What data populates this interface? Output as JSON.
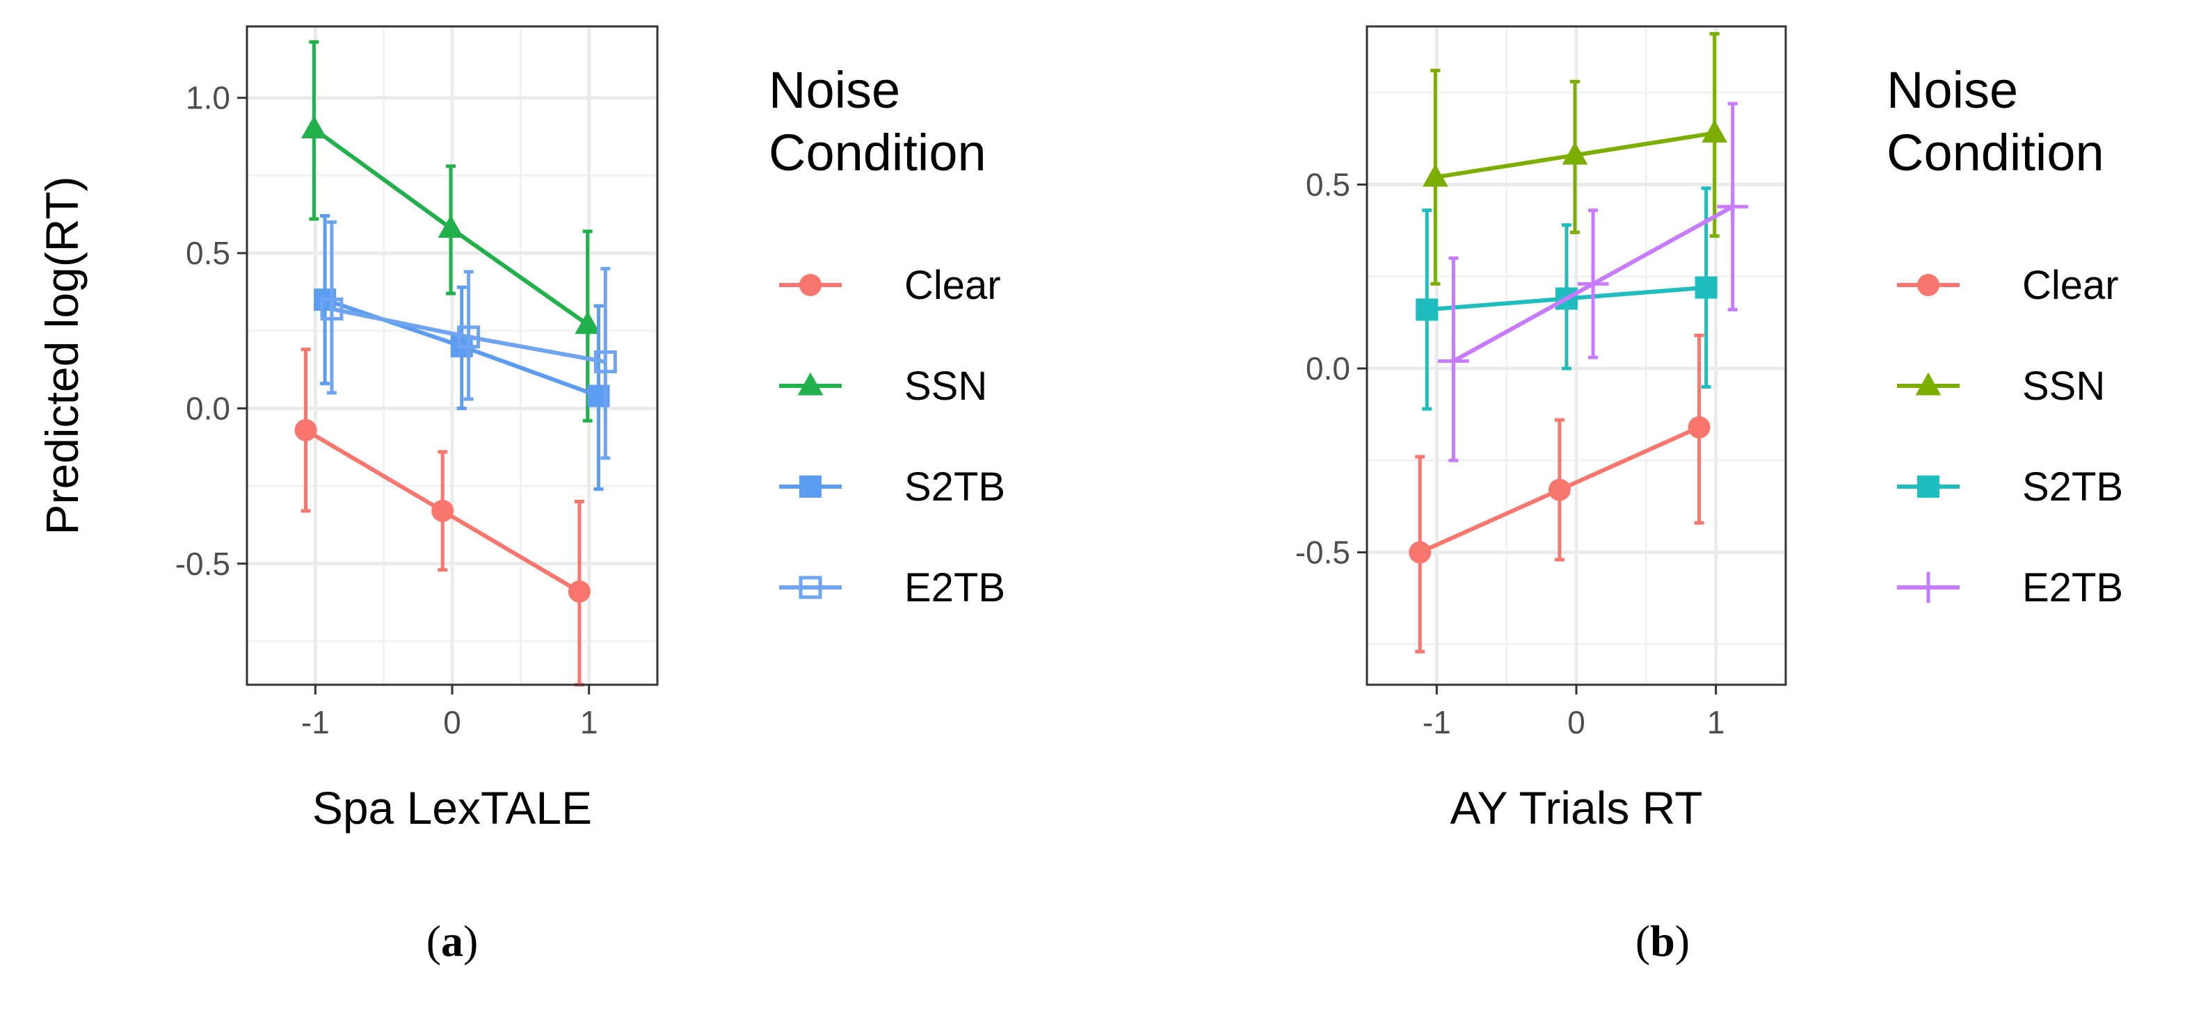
{
  "chart_data": [
    {
      "type": "line",
      "panel_label": "a",
      "xlabel": "Spa LexTALE",
      "ylabel": "Predicted log(RT)",
      "x_ticks": [
        -1,
        0,
        1
      ],
      "y_ticks": [
        -0.5,
        0.0,
        0.5,
        1.0
      ],
      "y_tick_labels": [
        "-0.5",
        "0.0",
        "0.5",
        "1.0"
      ],
      "xlim": [
        -1.5,
        1.5
      ],
      "ylim": [
        -0.89,
        1.23
      ],
      "grid": true,
      "legend_title_lines": [
        "Noise",
        "Condition"
      ],
      "series": [
        {
          "name": "Clear",
          "color": "#F8766D",
          "marker": "circle",
          "x": [
            -1,
            0,
            1
          ],
          "values": [
            -0.07,
            -0.33,
            -0.59
          ],
          "lower": [
            -0.33,
            -0.52,
            -0.89
          ],
          "upper": [
            0.19,
            -0.14,
            -0.3
          ]
        },
        {
          "name": "SSN",
          "color": "#21B04B",
          "marker": "triangle",
          "x": [
            -1,
            0,
            1
          ],
          "values": [
            0.9,
            0.58,
            0.27
          ],
          "lower": [
            0.61,
            0.37,
            -0.04
          ],
          "upper": [
            1.18,
            0.78,
            0.57
          ]
        },
        {
          "name": "S2TB",
          "color": "#5C9DF2",
          "marker": "square",
          "x": [
            -1,
            0,
            1
          ],
          "values": [
            0.35,
            0.2,
            0.04
          ],
          "lower": [
            0.08,
            0.0,
            -0.26
          ],
          "upper": [
            0.62,
            0.39,
            0.33
          ]
        },
        {
          "name": "E2TB",
          "color": "#6FA5F0",
          "marker": "open-square",
          "x": [
            -1,
            0,
            1
          ],
          "values": [
            0.32,
            0.23,
            0.15
          ],
          "lower": [
            0.05,
            0.03,
            -0.16
          ],
          "upper": [
            0.6,
            0.44,
            0.45
          ]
        }
      ]
    },
    {
      "type": "line",
      "panel_label": "b",
      "xlabel": "AY Trials RT",
      "ylabel": "",
      "x_ticks": [
        -1,
        0,
        1
      ],
      "y_ticks": [
        -0.5,
        0.0,
        0.5
      ],
      "y_tick_labels": [
        "-0.5",
        "0.0",
        "0.5"
      ],
      "xlim": [
        -1.5,
        1.5
      ],
      "ylim": [
        -0.86,
        0.93
      ],
      "grid": true,
      "legend_title_lines": [
        "Noise",
        "Condition"
      ],
      "series": [
        {
          "name": "Clear",
          "color": "#F8766D",
          "marker": "circle",
          "x": [
            -1,
            0,
            1
          ],
          "values": [
            -0.5,
            -0.33,
            -0.16
          ],
          "lower": [
            -0.77,
            -0.52,
            -0.42
          ],
          "upper": [
            -0.24,
            -0.14,
            0.09
          ]
        },
        {
          "name": "SSN",
          "color": "#7CAE00",
          "marker": "triangle",
          "x": [
            -1,
            0,
            1
          ],
          "values": [
            0.52,
            0.58,
            0.64
          ],
          "lower": [
            0.23,
            0.37,
            0.36
          ],
          "upper": [
            0.81,
            0.78,
            0.91
          ]
        },
        {
          "name": "S2TB",
          "color": "#1FBDBD",
          "marker": "square",
          "x": [
            -1,
            0,
            1
          ],
          "values": [
            0.16,
            0.19,
            0.22
          ],
          "lower": [
            -0.11,
            0.0,
            -0.05
          ],
          "upper": [
            0.43,
            0.39,
            0.49
          ]
        },
        {
          "name": "E2TB",
          "color": "#C77CFF",
          "marker": "plus",
          "x": [
            -1,
            0,
            1
          ],
          "values": [
            0.02,
            0.23,
            0.44
          ],
          "lower": [
            -0.25,
            0.03,
            0.16
          ],
          "upper": [
            0.3,
            0.43,
            0.72
          ]
        }
      ]
    }
  ]
}
